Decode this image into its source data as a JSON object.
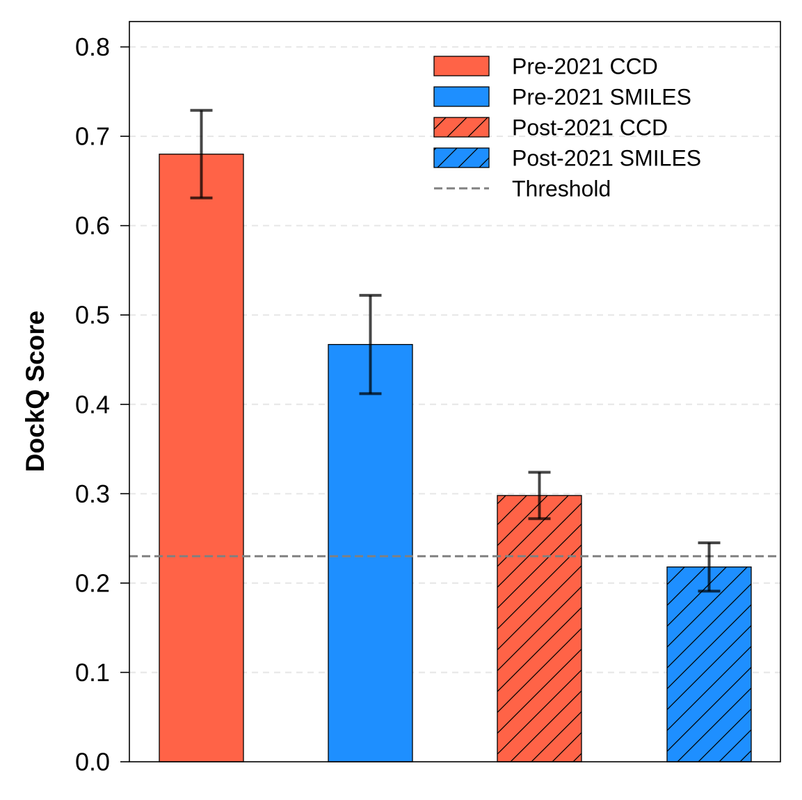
{
  "chart_data": {
    "type": "bar",
    "ylabel": "DockQ Score",
    "ylim": [
      0,
      0.83
    ],
    "yticks": [
      0.0,
      0.1,
      0.2,
      0.3,
      0.4,
      0.5,
      0.6,
      0.7,
      0.8
    ],
    "ytick_labels": [
      "0.0",
      "0.1",
      "0.2",
      "0.3",
      "0.4",
      "0.5",
      "0.6",
      "0.7",
      "0.8"
    ],
    "grid": "horizontal-dashed",
    "threshold": {
      "name": "Threshold",
      "value": 0.23,
      "color": "#808080",
      "style": "dashed"
    },
    "bars": [
      {
        "name": "Pre-2021 CCD",
        "value": 0.68,
        "error": 0.049,
        "color": "#FF6347",
        "hatch": false
      },
      {
        "name": "Pre-2021 SMILES",
        "value": 0.467,
        "error": 0.055,
        "color": "#1E8FFF",
        "hatch": false
      },
      {
        "name": "Post-2021 CCD",
        "value": 0.298,
        "error": 0.026,
        "color": "#FF6347",
        "hatch": true
      },
      {
        "name": "Post-2021 SMILES",
        "value": 0.218,
        "error": 0.027,
        "color": "#1E8FFF",
        "hatch": true
      }
    ],
    "legend": {
      "placement": "top-right",
      "entries": [
        "Pre-2021 CCD",
        "Pre-2021 SMILES",
        "Post-2021 CCD",
        "Post-2021 SMILES",
        "Threshold"
      ]
    }
  }
}
